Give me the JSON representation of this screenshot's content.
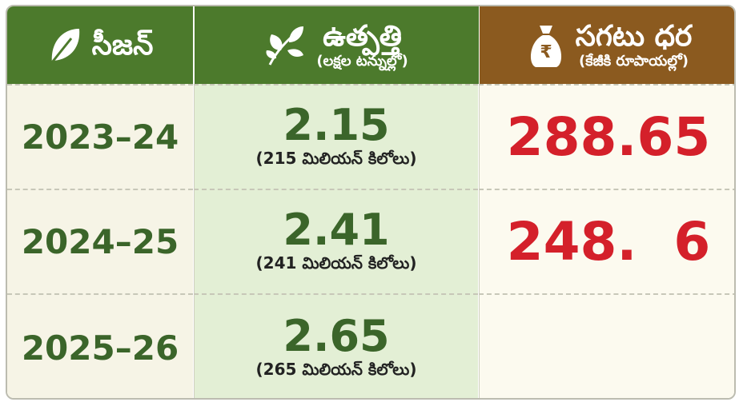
{
  "header": {
    "columns": [
      {
        "title": "సీజన్"
      },
      {
        "title": "ఉత్పత్తి",
        "subtitle": "(లక్షల టన్నుల్లో)"
      },
      {
        "title": "సగటు ధర",
        "subtitle": "(కేజీకి రూపాయల్లో)",
        "icon_symbol": "₹"
      }
    ]
  },
  "table": {
    "rows": [
      {
        "season": "2023–24",
        "production": "2.15",
        "production_note": "(215 మిలియన్ కిలోలు)",
        "price": "288.65"
      },
      {
        "season": "2024–25",
        "production": "2.41",
        "production_note": "(241 మిలియన్ కిలోలు)",
        "price": "248.  6"
      },
      {
        "season": "2025–26",
        "production": "2.65",
        "production_note": "(265 మిలియన్ కిలోలు)"
      }
    ]
  }
}
